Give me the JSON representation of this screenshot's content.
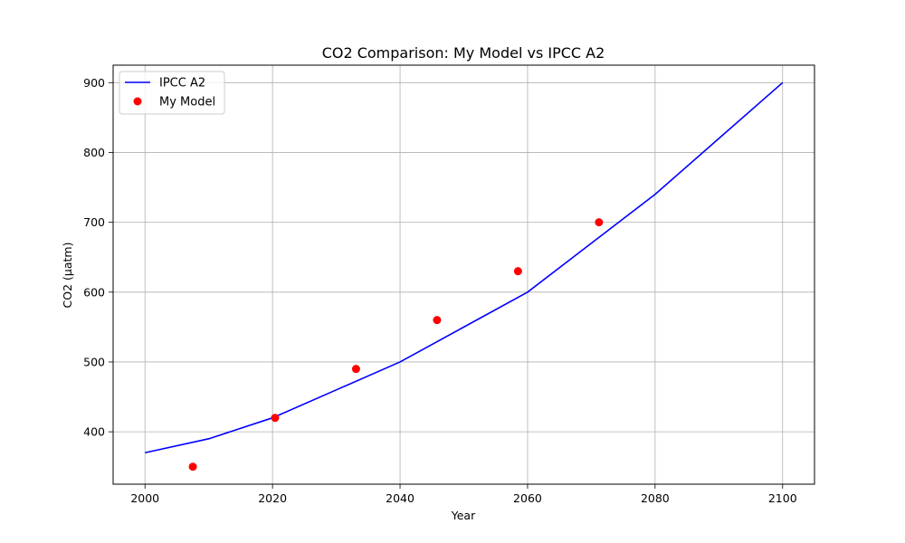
{
  "chart_data": {
    "type": "line",
    "title": "CO2 Comparison: My Model vs IPCC A2",
    "xlabel": "Year",
    "ylabel": "CO2 (µatm)",
    "xlim": [
      1995,
      2105
    ],
    "ylim": [
      325,
      925
    ],
    "xticks": [
      2000,
      2020,
      2040,
      2060,
      2080,
      2100
    ],
    "yticks": [
      400,
      500,
      600,
      700,
      800,
      900
    ],
    "grid": true,
    "legend_position": "upper-left",
    "series": [
      {
        "name": "IPCC A2",
        "kind": "line",
        "color": "#0000ff",
        "x": [
          2000,
          2010,
          2020,
          2030,
          2040,
          2050,
          2060,
          2070,
          2080,
          2090,
          2100
        ],
        "y": [
          370,
          390,
          420,
          460,
          500,
          550,
          600,
          670,
          740,
          820,
          900
        ]
      },
      {
        "name": "My Model",
        "kind": "scatter",
        "color": "#ff0000",
        "x": [
          2007.5,
          2020.4,
          2033.1,
          2045.8,
          2058.5,
          2071.2
        ],
        "y": [
          350,
          420,
          490,
          560,
          630,
          700
        ]
      }
    ]
  }
}
